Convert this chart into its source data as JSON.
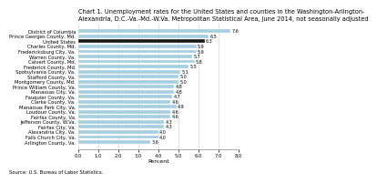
{
  "title1": "Chart 1. Unemployment rates for the United States and counties in the Washington-Arlington-",
  "title2": "Alexandria, D.C.-Va.-Md.-W.Va. Metropolitan Statistical Area, June 2014, not seasonally adjusted",
  "categories": [
    "District of Columbia",
    "Prince Georges County, Md.",
    "United States",
    "Charles County, Md.",
    "Fredericksburg City, Va.",
    "Warren County, Va.",
    "Calvert County, Md.",
    "Frederick County, Md.",
    "Spotsylvania County, Va.",
    "Stafford County, Va.",
    "Montgomery County, Md.",
    "Prince William County, Va.",
    "Manassas City, Va.",
    "Fauquier County, Va.",
    "Clarke County, Va.",
    "Manassas Park City, Va.",
    "Loudoun County, Va.",
    "Fairfax County, Va.",
    "Jefferson County, W.Va.",
    "Fairfax City, Va.",
    "Alexandria City, Va.",
    "Falls Church City, Va.",
    "Arlington County, Va."
  ],
  "values": [
    7.6,
    6.5,
    6.3,
    5.9,
    5.9,
    5.7,
    5.8,
    5.5,
    5.1,
    5.0,
    5.0,
    4.8,
    4.8,
    4.7,
    4.6,
    4.9,
    4.6,
    4.6,
    4.3,
    4.3,
    4.0,
    4.0,
    3.6
  ],
  "bar_colors_list": [
    "light",
    "light",
    "dark",
    "light",
    "light",
    "light",
    "light",
    "light",
    "light",
    "light",
    "light",
    "light",
    "light",
    "light",
    "light",
    "light",
    "light",
    "light",
    "light",
    "light",
    "light",
    "light",
    "light"
  ],
  "light_color": "#a8cfe0",
  "dark_color": "#1a1a1a",
  "xlabel": "Percent",
  "xlim": [
    0,
    8.0
  ],
  "xticks": [
    0.0,
    1.0,
    2.0,
    3.0,
    4.0,
    5.0,
    6.0,
    7.0,
    8.0
  ],
  "xtick_labels": [
    "0.0",
    "1.0",
    "2.0",
    "3.0",
    "4.0",
    "5.0",
    "6.0",
    "7.0",
    "8.0"
  ],
  "source": "Source: U.S. Bureau of Labor Statistics.",
  "title_fontsize": 4.8,
  "label_fontsize": 3.8,
  "value_fontsize": 3.5,
  "xlabel_fontsize": 4.5,
  "source_fontsize": 3.8,
  "bar_height": 0.7
}
